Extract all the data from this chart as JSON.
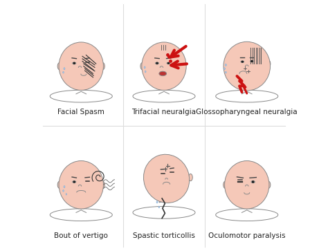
{
  "background_color": "#ffffff",
  "labels": [
    "Facial Spasm",
    "Trifacial neuralgia",
    "Glossopharyngeal neuralgia",
    "Bout of vertigo",
    "Spastic torticollis",
    "Oculomotor paralysis"
  ],
  "skin_color": "#f5c8b8",
  "outline_color": "#888888",
  "red_color": "#cc1111",
  "label_fontsize": 7.5,
  "grid_cols": [
    0.165,
    0.5,
    0.835
  ],
  "grid_rows": [
    0.74,
    0.26
  ],
  "label_rows": [
    0.055,
    0.555
  ],
  "face_r": 0.09
}
